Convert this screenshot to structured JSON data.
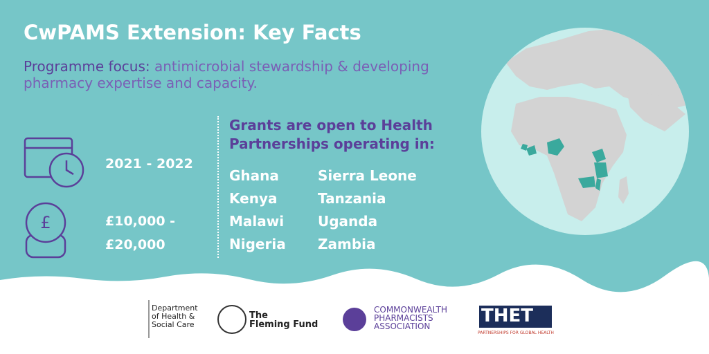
{
  "header": {
    "title": "CwPAMS Extension: Key Facts",
    "focus_label": "Programme focus:",
    "focus_text": "antimicrobial stewardship & developing pharmacy expertise and capacity."
  },
  "facts": {
    "dates": "2021 - 2022",
    "funding": [
      "£10,000 -",
      "£20,000"
    ]
  },
  "grants": {
    "heading": [
      "Grants are open to Health",
      "Partnerships operating in:"
    ],
    "columns": [
      [
        "Ghana",
        "Kenya",
        "Malawi",
        "Nigeria"
      ],
      [
        "Sierra Leone",
        "Tanzania",
        "Uganda",
        "Zambia"
      ]
    ]
  },
  "logos": {
    "dhsc": [
      "Department",
      "of Health &",
      "Social Care"
    ],
    "fleming": [
      "The",
      "Fleming Fund"
    ],
    "cpa": [
      "COMMONWEALTH",
      "PHARMACISTS",
      "ASSOCIATION"
    ],
    "thet": "THET",
    "thet_tagline": "PARTNERSHIPS FOR GLOBAL HEALTH"
  }
}
